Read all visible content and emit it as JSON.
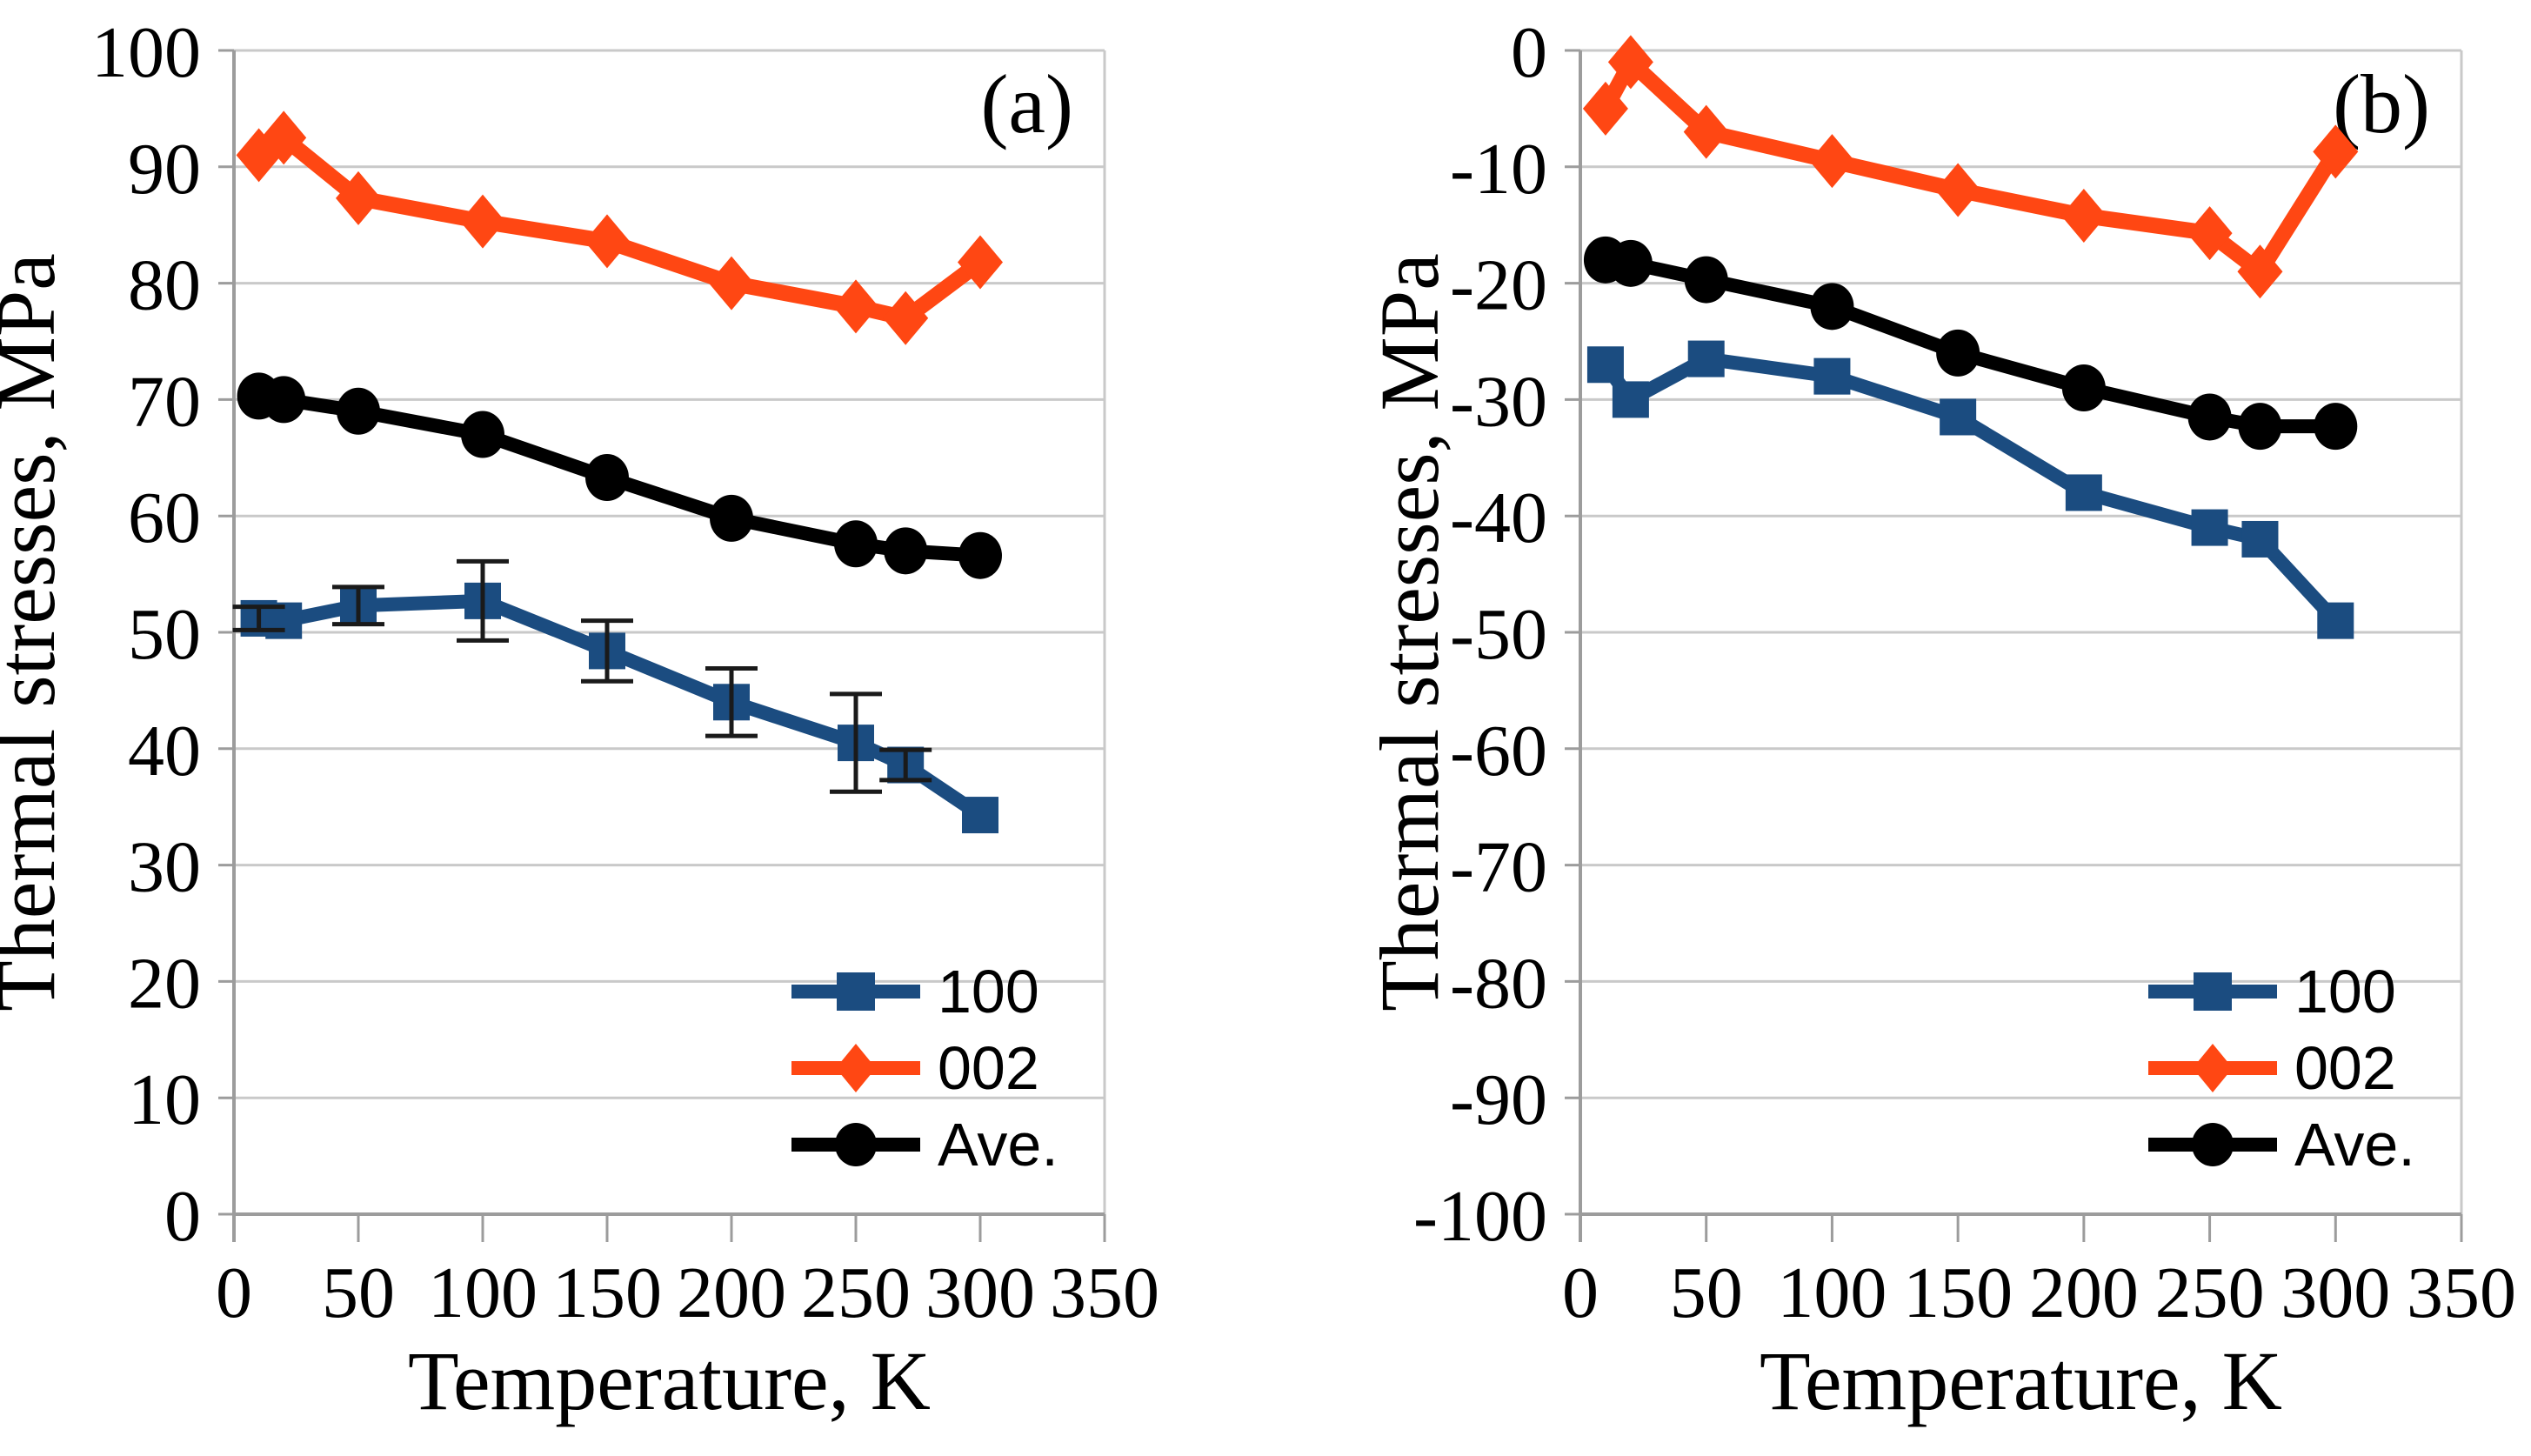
{
  "style": {
    "grid_color": "#C9C9C9",
    "axis_color": "#9C9C9C",
    "error_bar_color": "#1a1a1a",
    "background": "#FFFFFF",
    "series_blue": "#1B4C80",
    "series_orange": "#FF4713",
    "series_black": "#000000"
  },
  "chart_data": [
    {
      "type": "line",
      "panel_label": "(a)",
      "xlabel": "Temperature, K",
      "ylabel": "Thermal stresses, MPa",
      "x": [
        10,
        20,
        50,
        100,
        150,
        200,
        250,
        270,
        300
      ],
      "xlim": [
        0,
        350
      ],
      "ylim": [
        0,
        100
      ],
      "xticks": [
        0,
        50,
        100,
        150,
        200,
        250,
        300,
        350
      ],
      "yticks": [
        0,
        10,
        20,
        30,
        40,
        50,
        60,
        70,
        80,
        90,
        100
      ],
      "grid": true,
      "legend_position": "lower right inside",
      "series": [
        {
          "name": "100",
          "marker": "square",
          "color": "#1B4C80",
          "values": [
            51.2,
            51,
            52.3,
            52.7,
            48.4,
            44,
            40.5,
            38.6,
            34.3
          ],
          "error_bars": [
            1,
            null,
            1.6,
            3.4,
            2.6,
            2.9,
            4.2,
            1.3,
            null
          ]
        },
        {
          "name": "002",
          "marker": "diamond",
          "color": "#FF4713",
          "values": [
            91,
            92.5,
            87.3,
            85.3,
            83.6,
            80,
            78,
            77,
            81.8
          ]
        },
        {
          "name": "Ave.",
          "marker": "circle",
          "color": "#000000",
          "values": [
            70.3,
            70,
            69,
            67,
            63.3,
            59.8,
            57.6,
            57,
            56.6
          ]
        }
      ]
    },
    {
      "type": "line",
      "panel_label": "(b)",
      "xlabel": "Temperature, K",
      "ylabel": "Thermal stresses, MPa",
      "x": [
        10,
        20,
        50,
        100,
        150,
        200,
        250,
        270,
        300
      ],
      "xlim": [
        0,
        350
      ],
      "ylim": [
        -100,
        0
      ],
      "xticks": [
        0,
        50,
        100,
        150,
        200,
        250,
        300,
        350
      ],
      "yticks": [
        0,
        -10,
        -20,
        -30,
        -40,
        -50,
        -60,
        -70,
        -80,
        -90,
        -100
      ],
      "grid": true,
      "legend_position": "lower right inside",
      "series": [
        {
          "name": "100",
          "marker": "square",
          "color": "#1B4C80",
          "values": [
            -27,
            -30,
            -26.5,
            -28,
            -31.5,
            -38,
            -41,
            -42,
            -49
          ]
        },
        {
          "name": "002",
          "marker": "diamond",
          "color": "#FF4713",
          "values": [
            -5,
            -1,
            -7,
            -9.5,
            -12,
            -14.2,
            -15.7,
            -19,
            -8.7
          ]
        },
        {
          "name": "Ave.",
          "marker": "circle",
          "color": "#000000",
          "values": [
            -18,
            -18.3,
            -19.7,
            -22,
            -26,
            -29,
            -31.5,
            -32.3,
            -32.3
          ]
        }
      ]
    }
  ]
}
